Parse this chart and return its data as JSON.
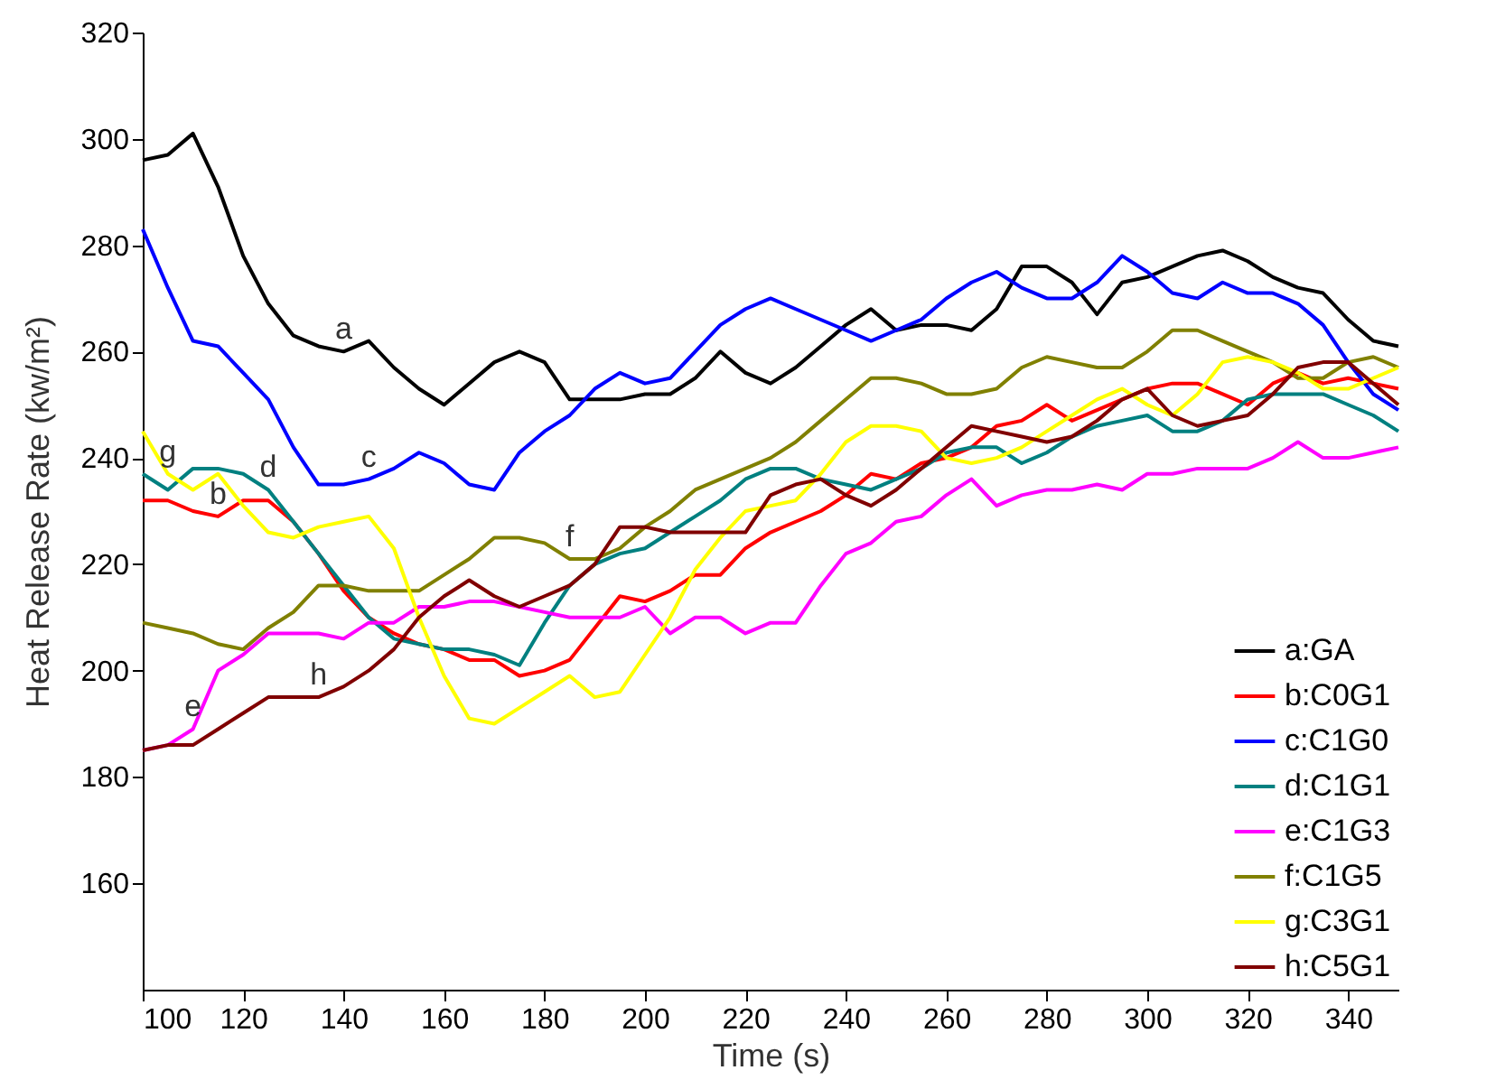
{
  "chart_data": {
    "type": "line",
    "xlabel": "Time (s)",
    "ylabel": "Heat Release Rate (kw/m²)",
    "x": [
      100,
      105,
      110,
      115,
      120,
      125,
      130,
      135,
      140,
      145,
      150,
      155,
      160,
      165,
      170,
      175,
      180,
      185,
      190,
      195,
      200,
      205,
      210,
      215,
      220,
      225,
      230,
      235,
      240,
      245,
      250,
      255,
      260,
      265,
      270,
      275,
      280,
      285,
      290,
      295,
      300,
      305,
      310,
      315,
      320,
      325,
      330,
      335,
      340,
      345,
      350
    ],
    "xlim": [
      100,
      350
    ],
    "xticks": [
      100,
      120,
      140,
      160,
      180,
      200,
      220,
      240,
      260,
      280,
      300,
      320,
      340
    ],
    "ylim": [
      140,
      320
    ],
    "yticks": [
      160,
      180,
      200,
      220,
      240,
      260,
      280,
      300,
      320
    ],
    "grid": false,
    "legend": "bottom right",
    "marker": "none",
    "line_style": "solid",
    "series": [
      {
        "name": "a:GA",
        "color": "#000000",
        "values": [
          296,
          297,
          301,
          291,
          278,
          269,
          263,
          261,
          260,
          262,
          257,
          253,
          250,
          254,
          258,
          260,
          258,
          251,
          251,
          251,
          252,
          252,
          255,
          260,
          256,
          254,
          257,
          261,
          265,
          268,
          264,
          265,
          265,
          264,
          268,
          276,
          276,
          273,
          267,
          273,
          274,
          276,
          278,
          279,
          277,
          274,
          272,
          271,
          266,
          262,
          261
        ]
      },
      {
        "name": "b:C0G1",
        "color": "#ff0000",
        "values": [
          232,
          232,
          230,
          229,
          232,
          232,
          228,
          222,
          215,
          210,
          207,
          205,
          204,
          202,
          202,
          199,
          200,
          202,
          208,
          214,
          213,
          215,
          218,
          218,
          223,
          226,
          228,
          230,
          233,
          237,
          236,
          239,
          240,
          242,
          246,
          247,
          250,
          247,
          249,
          251,
          253,
          254,
          254,
          252,
          250,
          254,
          256,
          254,
          255,
          254,
          253
        ]
      },
      {
        "name": "c:C1G0",
        "color": "#0000ff",
        "values": [
          283,
          272,
          262,
          261,
          256,
          251,
          242,
          235,
          235,
          236,
          238,
          241,
          239,
          235,
          234,
          241,
          245,
          248,
          253,
          256,
          254,
          255,
          260,
          265,
          268,
          270,
          268,
          266,
          264,
          262,
          264,
          266,
          270,
          273,
          275,
          272,
          270,
          270,
          273,
          278,
          275,
          271,
          270,
          273,
          271,
          271,
          269,
          265,
          258,
          252,
          249
        ]
      },
      {
        "name": "d:C1G1",
        "color": "#008080",
        "values": [
          237,
          234,
          238,
          238,
          237,
          234,
          228,
          222,
          216,
          210,
          206,
          205,
          204,
          204,
          203,
          201,
          209,
          216,
          220,
          222,
          223,
          226,
          229,
          232,
          236,
          238,
          238,
          236,
          235,
          234,
          236,
          238,
          241,
          242,
          242,
          239,
          241,
          244,
          246,
          247,
          248,
          245,
          245,
          247,
          251,
          252,
          252,
          252,
          250,
          248,
          245
        ]
      },
      {
        "name": "e:C1G3",
        "color": "#ff00ff",
        "values": [
          185,
          186,
          189,
          200,
          203,
          207,
          207,
          207,
          206,
          209,
          209,
          212,
          212,
          213,
          213,
          212,
          211,
          210,
          210,
          210,
          212,
          207,
          210,
          210,
          207,
          209,
          209,
          216,
          222,
          224,
          228,
          229,
          233,
          236,
          231,
          233,
          234,
          234,
          235,
          234,
          237,
          237,
          238,
          238,
          238,
          240,
          243,
          240,
          240,
          241,
          242
        ]
      },
      {
        "name": "f:C1G5",
        "color": "#808000",
        "values": [
          209,
          208,
          207,
          205,
          204,
          208,
          211,
          216,
          216,
          215,
          215,
          215,
          218,
          221,
          225,
          225,
          224,
          221,
          221,
          223,
          227,
          230,
          234,
          236,
          238,
          240,
          243,
          247,
          251,
          255,
          255,
          254,
          252,
          252,
          253,
          257,
          259,
          258,
          257,
          257,
          260,
          264,
          264,
          262,
          260,
          258,
          255,
          255,
          258,
          259,
          257
        ]
      },
      {
        "name": "g:C3G1",
        "color": "#ffff00",
        "values": [
          245,
          237,
          234,
          237,
          231,
          226,
          225,
          227,
          228,
          229,
          223,
          210,
          199,
          191,
          190,
          193,
          196,
          199,
          195,
          196,
          203,
          210,
          219,
          225,
          230,
          231,
          232,
          237,
          243,
          246,
          246,
          245,
          240,
          239,
          240,
          242,
          245,
          248,
          251,
          253,
          250,
          248,
          252,
          258,
          259,
          258,
          256,
          253,
          253,
          255,
          257
        ]
      },
      {
        "name": "h:C5G1",
        "color": "#800000",
        "values": [
          185,
          186,
          186,
          189,
          192,
          195,
          195,
          195,
          197,
          200,
          204,
          210,
          214,
          217,
          214,
          212,
          214,
          216,
          220,
          227,
          227,
          226,
          226,
          226,
          226,
          233,
          235,
          236,
          233,
          231,
          234,
          238,
          242,
          246,
          245,
          244,
          243,
          244,
          247,
          251,
          253,
          248,
          246,
          247,
          248,
          252,
          257,
          258,
          258,
          254,
          250
        ]
      }
    ],
    "annotations": [
      {
        "text": "a",
        "x": 140,
        "y": 260
      },
      {
        "text": "b",
        "x": 115,
        "y": 229
      },
      {
        "text": "c",
        "x": 145,
        "y": 236
      },
      {
        "text": "d",
        "x": 125,
        "y": 234
      },
      {
        "text": "e",
        "x": 110,
        "y": 189
      },
      {
        "text": "f",
        "x": 185,
        "y": 221
      },
      {
        "text": "g",
        "x": 105,
        "y": 237
      },
      {
        "text": "h",
        "x": 135,
        "y": 195
      }
    ]
  }
}
